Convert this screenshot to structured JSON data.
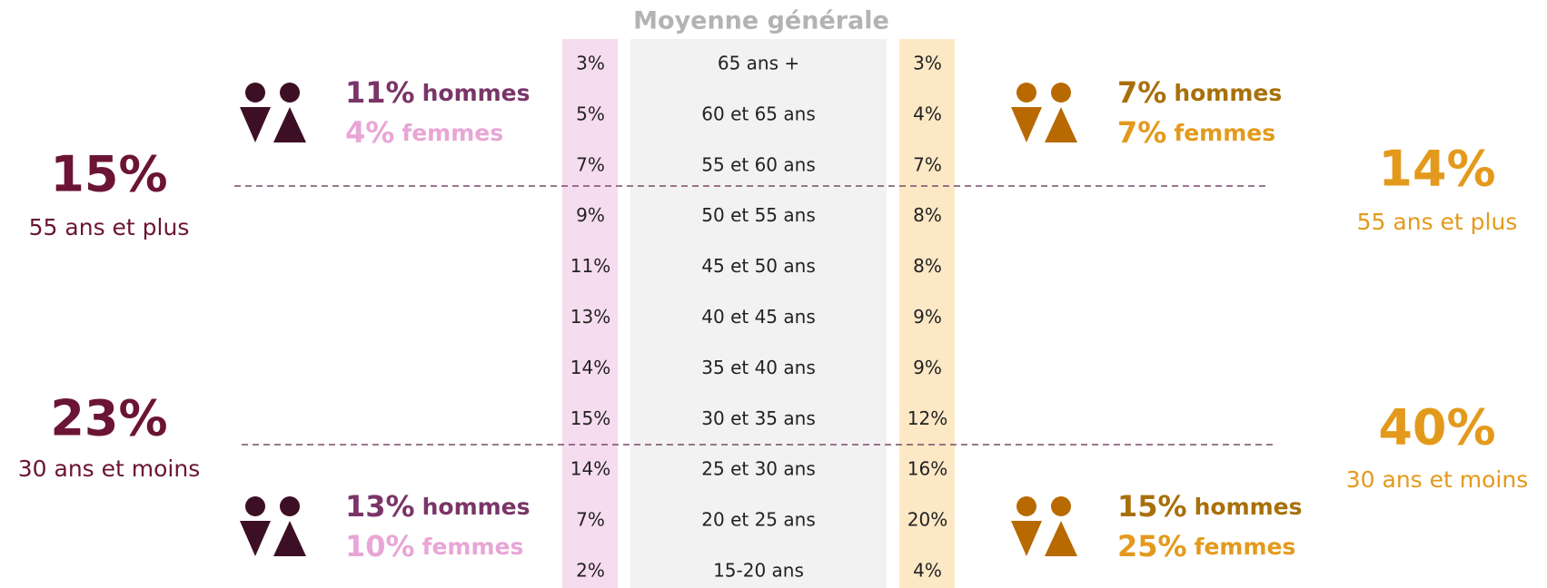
{
  "title": "Moyenne générale",
  "rows": [
    {
      "left": "3%",
      "age": "65 ans +",
      "right": "3%"
    },
    {
      "left": "5%",
      "age": "60 et 65 ans",
      "right": "4%"
    },
    {
      "left": "7%",
      "age": "55 et 60 ans",
      "right": "7%"
    },
    {
      "left": "9%",
      "age": "50 et 55 ans",
      "right": "8%"
    },
    {
      "left": "11%",
      "age": "45 et 50 ans",
      "right": "8%"
    },
    {
      "left": "13%",
      "age": "40 et 45 ans",
      "right": "9%"
    },
    {
      "left": "14%",
      "age": "35 et 40 ans",
      "right": "9%"
    },
    {
      "left": "15%",
      "age": "30 et 35 ans",
      "right": "12%"
    },
    {
      "left": "14%",
      "age": "25 et 30 ans",
      "right": "16%"
    },
    {
      "left": "7%",
      "age": "20 et 25 ans",
      "right": "20%"
    },
    {
      "left": "2%",
      "age": "15-20 ans",
      "right": "4%"
    }
  ],
  "left": {
    "top": {
      "value": "15%",
      "label": "55 ans et plus",
      "men": {
        "value": "11%",
        "word": "hommes"
      },
      "women": {
        "value": "4%",
        "word": "femmes"
      }
    },
    "bottom": {
      "value": "23%",
      "label": "30 ans et moins",
      "men": {
        "value": "13%",
        "word": "hommes"
      },
      "women": {
        "value": "10%",
        "word": "femmes"
      }
    }
  },
  "right": {
    "top": {
      "value": "14%",
      "label": "55 ans et plus",
      "men": {
        "value": "7%",
        "word": "hommes"
      },
      "women": {
        "value": "7%",
        "word": "femmes"
      }
    },
    "bottom": {
      "value": "40%",
      "label": "30 ans et moins",
      "men": {
        "value": "15%",
        "word": "hommes"
      },
      "women": {
        "value": "25%",
        "word": "femmes"
      }
    }
  }
}
